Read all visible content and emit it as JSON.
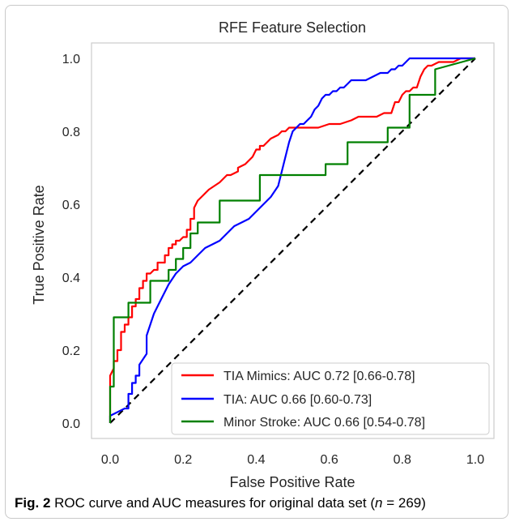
{
  "chart_data": {
    "type": "line",
    "title": "RFE Feature Selection",
    "xlabel": "False Positive Rate",
    "ylabel": "True Positive Rate",
    "xlim": [
      0.0,
      1.0
    ],
    "ylim": [
      0.0,
      1.0
    ],
    "xticks": [
      "0.0",
      "0.2",
      "0.4",
      "0.6",
      "0.8",
      "1.0"
    ],
    "yticks": [
      "0.0",
      "0.2",
      "0.4",
      "0.6",
      "0.8",
      "1.0"
    ],
    "grid": false,
    "legend_position": "lower-right",
    "series": [
      {
        "name": "TIA Mimics: AUC 0.72 [0.66-0.78]",
        "color": "#ff0000",
        "x": [
          0.0,
          0.0,
          0.0,
          0.01,
          0.01,
          0.02,
          0.02,
          0.03,
          0.03,
          0.04,
          0.04,
          0.05,
          0.05,
          0.06,
          0.06,
          0.07,
          0.07,
          0.08,
          0.08,
          0.09,
          0.09,
          0.1,
          0.1,
          0.11,
          0.12,
          0.13,
          0.13,
          0.14,
          0.15,
          0.15,
          0.16,
          0.16,
          0.17,
          0.17,
          0.18,
          0.18,
          0.19,
          0.2,
          0.21,
          0.21,
          0.22,
          0.22,
          0.23,
          0.23,
          0.24,
          0.25,
          0.27,
          0.3,
          0.32,
          0.33,
          0.35,
          0.35,
          0.37,
          0.38,
          0.39,
          0.4,
          0.41,
          0.41,
          0.42,
          0.43,
          0.44,
          0.46,
          0.47,
          0.48,
          0.49,
          0.5,
          0.51,
          0.52,
          0.54,
          0.57,
          0.6,
          0.63,
          0.66,
          0.68,
          0.7,
          0.73,
          0.75,
          0.77,
          0.78,
          0.79,
          0.8,
          0.81,
          0.82,
          0.83,
          0.84,
          0.85,
          0.86,
          0.87,
          0.88,
          0.9,
          0.92,
          0.94,
          0.96,
          0.98,
          1.0
        ],
        "y": [
          0.0,
          0.08,
          0.13,
          0.15,
          0.17,
          0.17,
          0.2,
          0.2,
          0.25,
          0.25,
          0.27,
          0.27,
          0.29,
          0.29,
          0.32,
          0.32,
          0.34,
          0.34,
          0.37,
          0.37,
          0.39,
          0.39,
          0.41,
          0.41,
          0.42,
          0.42,
          0.44,
          0.44,
          0.44,
          0.46,
          0.46,
          0.48,
          0.48,
          0.49,
          0.49,
          0.5,
          0.5,
          0.51,
          0.51,
          0.53,
          0.53,
          0.56,
          0.56,
          0.59,
          0.61,
          0.62,
          0.64,
          0.66,
          0.68,
          0.68,
          0.69,
          0.7,
          0.71,
          0.72,
          0.73,
          0.75,
          0.75,
          0.76,
          0.76,
          0.77,
          0.78,
          0.79,
          0.8,
          0.8,
          0.81,
          0.81,
          0.81,
          0.81,
          0.81,
          0.81,
          0.82,
          0.82,
          0.83,
          0.84,
          0.84,
          0.84,
          0.85,
          0.85,
          0.88,
          0.88,
          0.9,
          0.91,
          0.91,
          0.92,
          0.92,
          0.95,
          0.97,
          0.98,
          0.98,
          0.99,
          0.99,
          0.99,
          1.0,
          1.0,
          1.0
        ]
      },
      {
        "name": "TIA: AUC 0.66 [0.60-0.73]",
        "color": "#0000ff",
        "x": [
          0.0,
          0.0,
          0.04,
          0.05,
          0.05,
          0.06,
          0.06,
          0.07,
          0.07,
          0.08,
          0.08,
          0.1,
          0.1,
          0.12,
          0.14,
          0.16,
          0.18,
          0.2,
          0.22,
          0.24,
          0.26,
          0.28,
          0.3,
          0.32,
          0.34,
          0.36,
          0.38,
          0.4,
          0.42,
          0.44,
          0.46,
          0.47,
          0.48,
          0.49,
          0.5,
          0.51,
          0.52,
          0.53,
          0.54,
          0.55,
          0.56,
          0.57,
          0.58,
          0.59,
          0.6,
          0.61,
          0.62,
          0.63,
          0.64,
          0.65,
          0.66,
          0.68,
          0.7,
          0.72,
          0.74,
          0.76,
          0.77,
          0.78,
          0.79,
          0.8,
          0.81,
          0.82,
          0.84,
          0.85,
          0.86,
          0.88,
          0.9,
          0.92,
          0.95,
          1.0
        ],
        "y": [
          0.0,
          0.02,
          0.04,
          0.04,
          0.08,
          0.08,
          0.11,
          0.11,
          0.13,
          0.13,
          0.16,
          0.19,
          0.24,
          0.3,
          0.34,
          0.38,
          0.41,
          0.43,
          0.44,
          0.46,
          0.48,
          0.49,
          0.5,
          0.52,
          0.54,
          0.55,
          0.56,
          0.58,
          0.6,
          0.62,
          0.65,
          0.69,
          0.73,
          0.77,
          0.8,
          0.81,
          0.82,
          0.82,
          0.83,
          0.84,
          0.86,
          0.87,
          0.89,
          0.9,
          0.9,
          0.91,
          0.91,
          0.92,
          0.92,
          0.93,
          0.94,
          0.94,
          0.94,
          0.95,
          0.96,
          0.96,
          0.97,
          0.97,
          0.98,
          0.98,
          0.99,
          1.0,
          1.0,
          1.0,
          1.0,
          1.0,
          1.0,
          1.0,
          1.0,
          1.0
        ]
      },
      {
        "name": "Minor Stroke: AUC 0.66 [0.54-0.78]",
        "color": "#008000",
        "x": [
          0.0,
          0.0,
          0.01,
          0.01,
          0.05,
          0.05,
          0.11,
          0.11,
          0.16,
          0.16,
          0.18,
          0.18,
          0.2,
          0.2,
          0.22,
          0.22,
          0.24,
          0.24,
          0.3,
          0.3,
          0.41,
          0.41,
          0.59,
          0.59,
          0.65,
          0.65,
          0.76,
          0.76,
          0.82,
          0.82,
          0.89,
          0.89,
          1.0
        ],
        "y": [
          0.0,
          0.1,
          0.1,
          0.29,
          0.29,
          0.33,
          0.33,
          0.39,
          0.39,
          0.42,
          0.42,
          0.45,
          0.45,
          0.48,
          0.48,
          0.52,
          0.52,
          0.55,
          0.55,
          0.61,
          0.61,
          0.68,
          0.68,
          0.71,
          0.71,
          0.77,
          0.77,
          0.81,
          0.81,
          0.9,
          0.9,
          0.97,
          1.0
        ]
      },
      {
        "name": "",
        "color": "#000000",
        "dashed": true,
        "x": [
          0.0,
          1.0
        ],
        "y": [
          0.0,
          1.0
        ]
      }
    ]
  },
  "caption": {
    "fig_label": "Fig. 2",
    "text": " ROC curve and AUC measures for original data set (",
    "n_var": "n",
    "n_value": " = 269)"
  }
}
